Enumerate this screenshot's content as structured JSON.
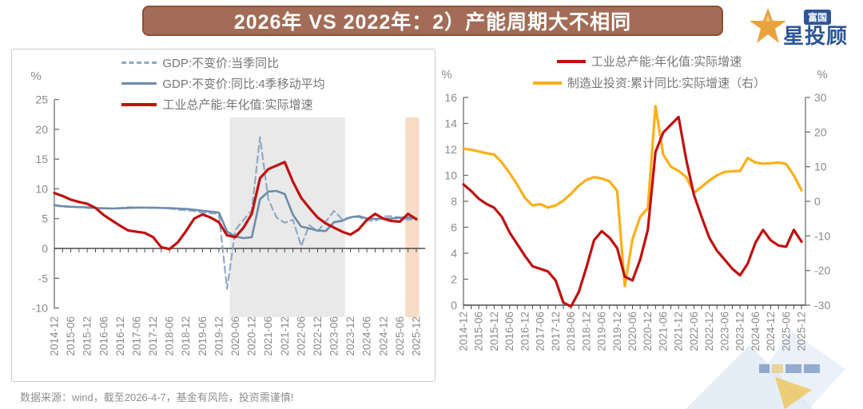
{
  "title": {
    "text": "2026年 VS 2022年：2）产能周期大不相同"
  },
  "logo": {
    "badge": "富国",
    "name": "星投顾",
    "star_color": "#E8A33C",
    "text_color": "#2E5596"
  },
  "footer": {
    "text": "数据来源：wind，截至2026-4-7，基金有风险，投资需谨慎!"
  },
  "colors": {
    "banner_bg": "#A26C56",
    "banner_border": "#8D4F38",
    "red_line": "#C01010",
    "blue_solid": "#6E8CAC",
    "blue_dashed": "#8FA9C4",
    "orange_line": "#FCAF17",
    "gray_band": "#E9E9E9",
    "peach_band": "#F8DCC7",
    "axis": "#6F6F6F",
    "axis_dark": "#4A4A4A",
    "tick_text": "#8A8A8A"
  },
  "chart_data": [
    {
      "type": "line",
      "ylabel": "%",
      "ylim": [
        -10,
        25
      ],
      "y_ticks": [
        25,
        20,
        15,
        10,
        5,
        0,
        -5,
        -10
      ],
      "grid": false,
      "legend_position": "top-center",
      "x": [
        "2014-12",
        "2015-03",
        "2015-06",
        "2015-09",
        "2015-12",
        "2016-03",
        "2016-06",
        "2016-09",
        "2016-12",
        "2017-03",
        "2017-06",
        "2017-09",
        "2017-12",
        "2018-03",
        "2018-06",
        "2018-09",
        "2018-12",
        "2019-03",
        "2019-06",
        "2019-09",
        "2019-12",
        "2020-03",
        "2020-06",
        "2020-09",
        "2020-12",
        "2021-03",
        "2021-06",
        "2021-09",
        "2021-12",
        "2022-03",
        "2022-06",
        "2022-09",
        "2022-12",
        "2023-03",
        "2023-06",
        "2023-09",
        "2023-12",
        "2024-03",
        "2024-06",
        "2024-09",
        "2024-12",
        "2025-03",
        "2025-06",
        "2025-09",
        "2025-12"
      ],
      "x_tick_labels": [
        "2014-12",
        "2015-06",
        "2015-12",
        "2016-06",
        "2016-12",
        "2017-06",
        "2017-12",
        "2018-06",
        "2018-12",
        "2019-06",
        "2019-12",
        "2020-06",
        "2020-12",
        "2021-06",
        "2021-12",
        "2022-06",
        "2022-12",
        "2023-06",
        "2023-12",
        "2024-06",
        "2024-12",
        "2025-06",
        "2025-12"
      ],
      "series": [
        {
          "name": "GDP:不变价:当季同比",
          "style": "dashed",
          "axis": "left",
          "color": "#8FA9C4",
          "values": [
            7.2,
            7.0,
            7.0,
            6.9,
            6.8,
            6.7,
            6.7,
            6.7,
            6.8,
            6.9,
            6.9,
            6.8,
            6.8,
            6.8,
            6.7,
            6.5,
            6.4,
            6.3,
            6.0,
            5.9,
            5.8,
            -6.8,
            3.1,
            4.8,
            6.4,
            18.7,
            8.3,
            5.2,
            4.3,
            4.8,
            0.4,
            3.9,
            2.9,
            4.5,
            6.3,
            4.9,
            5.2,
            5.3,
            4.7,
            4.6,
            5.4,
            5.4,
            5.2,
            4.8,
            5.0
          ]
        },
        {
          "name": "GDP:不变价:同比:4季移动平均",
          "style": "solid",
          "axis": "left",
          "color": "#6E8CAC",
          "values": [
            7.3,
            7.1,
            7.0,
            6.95,
            6.9,
            6.8,
            6.75,
            6.7,
            6.75,
            6.8,
            6.85,
            6.85,
            6.85,
            6.8,
            6.78,
            6.7,
            6.63,
            6.5,
            6.33,
            6.18,
            6.03,
            2.83,
            2.0,
            1.73,
            1.88,
            8.25,
            9.55,
            9.65,
            9.13,
            5.65,
            3.68,
            3.35,
            3.0,
            2.93,
            4.4,
            4.65,
            5.23,
            5.43,
            5.03,
            4.95,
            5.0,
            5.03,
            5.15,
            5.2,
            5.1
          ]
        },
        {
          "name": "工业总产能:年化值:实际增速",
          "style": "solid",
          "axis": "left",
          "color": "#C01010",
          "values": [
            9.3,
            8.8,
            8.2,
            7.8,
            7.5,
            6.8,
            5.6,
            4.7,
            3.8,
            3.0,
            2.8,
            2.6,
            1.9,
            0.2,
            -0.1,
            1.0,
            2.9,
            5.0,
            5.7,
            5.2,
            4.4,
            2.2,
            1.9,
            3.5,
            5.8,
            11.8,
            13.3,
            13.9,
            14.5,
            11.2,
            8.5,
            6.8,
            5.2,
            4.2,
            3.5,
            2.8,
            2.3,
            3.2,
            4.8,
            5.8,
            5.0,
            4.6,
            4.5,
            5.8,
            4.9
          ]
        }
      ],
      "bands": [
        {
          "from": "2020-04",
          "to": "2023-10",
          "color": "#E9E9E9"
        },
        {
          "from": "2025-08",
          "to": "2026-01",
          "color": "#F8DCC7"
        }
      ]
    },
    {
      "type": "line",
      "ylabel": "%",
      "ylabel_right": "%",
      "ylim_left": [
        0,
        16
      ],
      "ylim_right": [
        -30,
        30
      ],
      "y_ticks_left": [
        16,
        14,
        12,
        10,
        8,
        6,
        4,
        2,
        0
      ],
      "y_ticks_right": [
        30,
        20,
        10,
        0,
        -10,
        -20,
        -30
      ],
      "grid": false,
      "legend_position": "top-center",
      "x": [
        "2014-12",
        "2015-03",
        "2015-06",
        "2015-09",
        "2015-12",
        "2016-03",
        "2016-06",
        "2016-09",
        "2016-12",
        "2017-03",
        "2017-06",
        "2017-09",
        "2017-12",
        "2018-03",
        "2018-06",
        "2018-09",
        "2018-12",
        "2019-03",
        "2019-06",
        "2019-09",
        "2019-12",
        "2020-03",
        "2020-06",
        "2020-09",
        "2020-12",
        "2021-03",
        "2021-06",
        "2021-09",
        "2021-12",
        "2022-03",
        "2022-06",
        "2022-09",
        "2022-12",
        "2023-03",
        "2023-06",
        "2023-09",
        "2023-12",
        "2024-03",
        "2024-06",
        "2024-09",
        "2024-12",
        "2025-03",
        "2025-06",
        "2025-09",
        "2025-12"
      ],
      "x_tick_labels": [
        "2014-12",
        "2015-06",
        "2015-12",
        "2016-06",
        "2016-12",
        "2017-06",
        "2017-12",
        "2018-06",
        "2018-12",
        "2019-06",
        "2019-12",
        "2020-06",
        "2020-12",
        "2021-06",
        "2021-12",
        "2022-06",
        "2022-12",
        "2023-06",
        "2023-12",
        "2024-06",
        "2024-12",
        "2025-06",
        "2025-12"
      ],
      "series": [
        {
          "name": "工业总产能:年化值:实际增速",
          "style": "solid",
          "axis": "left",
          "color": "#C01010",
          "values": [
            9.3,
            8.8,
            8.2,
            7.8,
            7.5,
            6.8,
            5.6,
            4.7,
            3.8,
            3.0,
            2.8,
            2.6,
            1.9,
            0.2,
            -0.1,
            1.0,
            2.9,
            5.0,
            5.7,
            5.2,
            4.4,
            2.2,
            1.9,
            3.5,
            5.8,
            11.8,
            13.3,
            13.9,
            14.5,
            11.2,
            8.5,
            6.8,
            5.2,
            4.2,
            3.5,
            2.8,
            2.3,
            3.2,
            4.8,
            5.8,
            5.0,
            4.6,
            4.5,
            5.8,
            4.9
          ]
        },
        {
          "name": "制造业投资:累计同比:实际增速（右）",
          "style": "solid",
          "axis": "right",
          "color": "#FCAF17",
          "values": [
            15.2,
            14.9,
            14.4,
            13.9,
            13.5,
            11.2,
            8.2,
            4.8,
            1.0,
            -1.2,
            -0.8,
            -1.8,
            -1.2,
            0.2,
            2.2,
            4.5,
            6.2,
            7.0,
            6.6,
            5.8,
            3.0,
            -24.5,
            -11.0,
            -4.5,
            -2.0,
            27.5,
            13.5,
            10.0,
            8.8,
            7.0,
            2.5,
            4.2,
            6.0,
            7.5,
            8.5,
            8.7,
            8.8,
            12.5,
            11.2,
            10.9,
            11.0,
            11.2,
            10.8,
            7.5,
            3.2
          ]
        }
      ]
    }
  ]
}
